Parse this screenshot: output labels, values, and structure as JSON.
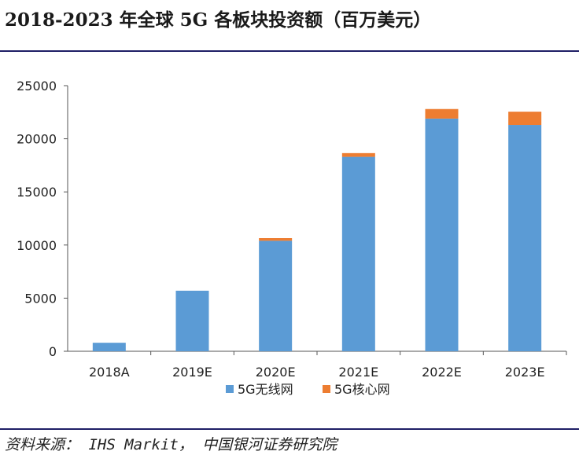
{
  "title": "2018-2023 年全球 5G 各板块投资额（百万美元）",
  "source": "资料来源： IHS Markit， 中国银河证券研究院",
  "colors": {
    "wireless": "#5b9bd5",
    "core": "#ed7d31",
    "rule": "#1f1f66"
  },
  "chart_data": {
    "type": "bar",
    "stacked": true,
    "categories": [
      "2018A",
      "2019E",
      "2020E",
      "2021E",
      "2022E",
      "2023E"
    ],
    "series": [
      {
        "name": "5G无线网",
        "values": [
          800,
          5700,
          10400,
          18300,
          21900,
          21300
        ]
      },
      {
        "name": "5G核心网",
        "values": [
          0,
          0,
          250,
          350,
          900,
          1250
        ]
      }
    ],
    "ylim": [
      0,
      25000
    ],
    "yticks": [
      "0",
      "5000",
      "10000",
      "15000",
      "20000",
      "25000"
    ],
    "grid": false,
    "legend_position": "bottom"
  }
}
